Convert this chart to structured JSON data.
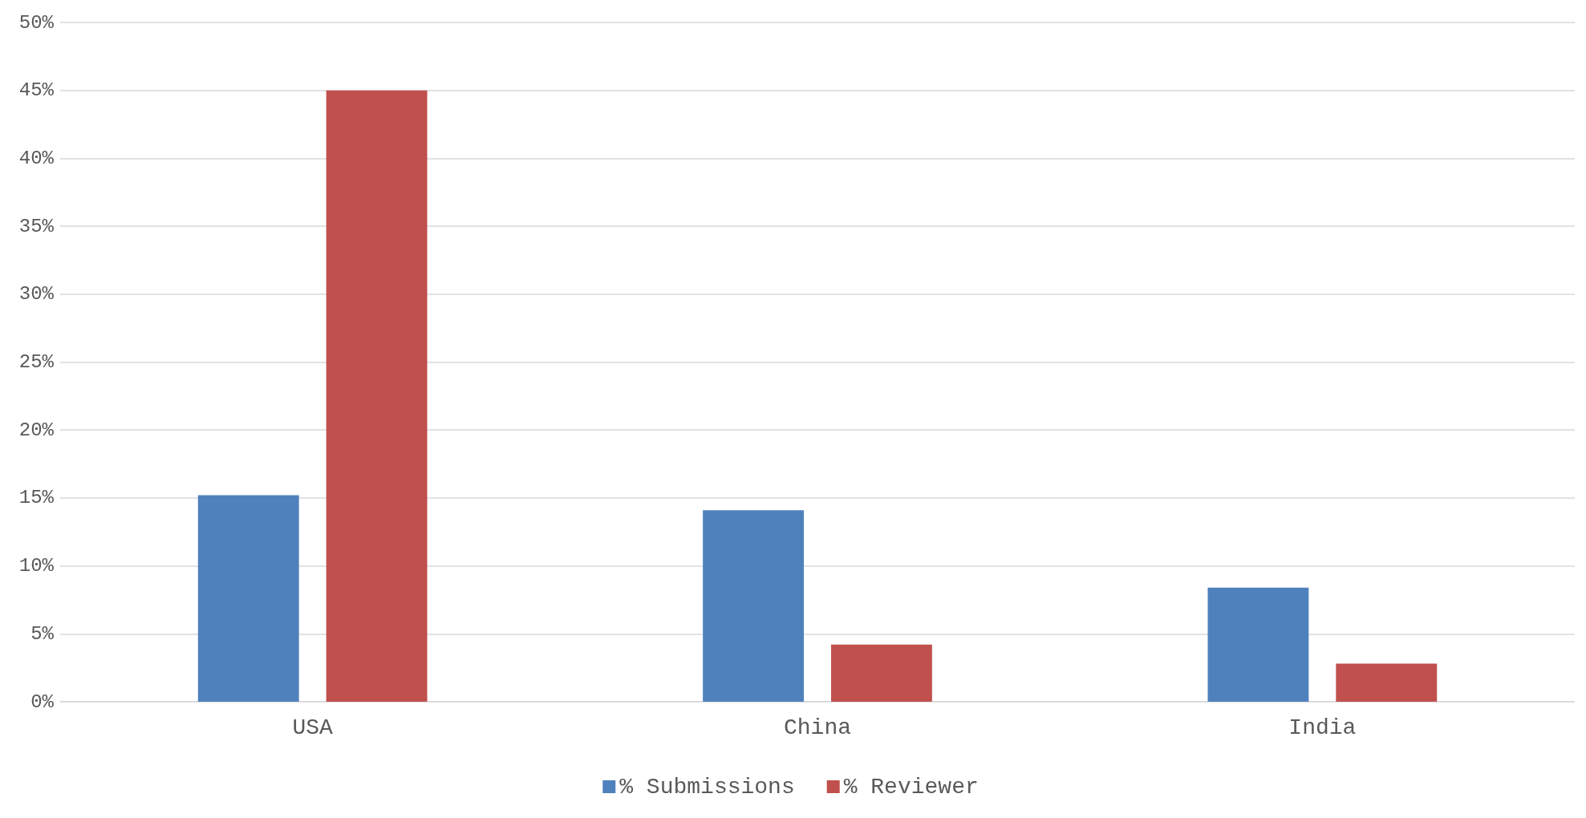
{
  "chart_data": {
    "type": "bar",
    "categories": [
      "USA",
      "China",
      "India"
    ],
    "series": [
      {
        "name": "% Submissions",
        "color": "#4f81bd",
        "values": [
          15.2,
          14.1,
          8.4
        ]
      },
      {
        "name": "% Reviewer",
        "color": "#c0504d",
        "values": [
          45,
          4.2,
          2.8
        ]
      }
    ],
    "ylim": [
      0,
      50
    ],
    "yticks": [
      {
        "value": 0,
        "label": "0%"
      },
      {
        "value": 5,
        "label": "5%"
      },
      {
        "value": 10,
        "label": "10%"
      },
      {
        "value": 15,
        "label": "15%"
      },
      {
        "value": 20,
        "label": "20%"
      },
      {
        "value": 25,
        "label": "25%"
      },
      {
        "value": 30,
        "label": "30%"
      },
      {
        "value": 35,
        "label": "35%"
      },
      {
        "value": 40,
        "label": "40%"
      },
      {
        "value": 45,
        "label": "45%"
      },
      {
        "value": 50,
        "label": "50%"
      }
    ],
    "grid": "y",
    "legend": "bottom"
  }
}
